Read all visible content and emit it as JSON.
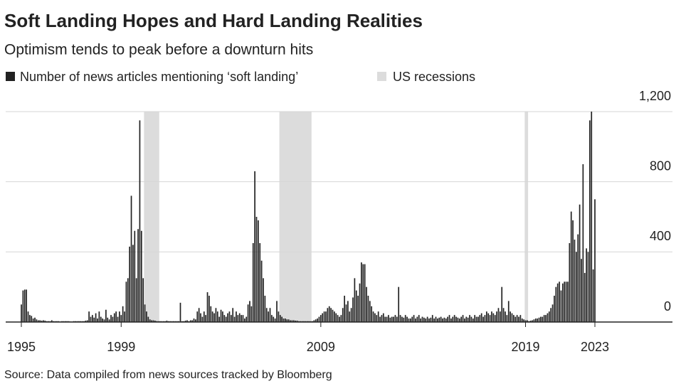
{
  "chart_data": {
    "type": "bar",
    "title": "Soft Landing Hopes and Hard Landing Realities",
    "subtitle": "Optimism tends to peak before a downturn hits",
    "source": "Source: Data compiled from news sources tracked by Bloomberg",
    "categories": [
      "1995",
      null,
      null,
      null,
      null,
      null,
      null,
      null,
      null,
      null,
      null,
      null,
      null,
      null,
      null,
      null,
      null,
      null,
      null,
      null,
      null,
      null,
      null,
      null,
      null,
      null,
      null,
      null,
      null,
      null,
      null,
      null,
      null,
      null,
      null,
      null,
      null,
      null,
      null,
      null,
      null,
      null,
      null,
      null,
      null,
      null,
      null,
      null,
      null,
      null,
      null,
      null,
      null,
      null,
      null,
      null,
      null,
      null,
      null,
      "1999",
      null,
      null,
      null,
      null,
      null,
      null,
      null,
      null,
      null,
      null,
      null,
      null,
      null,
      null,
      null,
      null,
      null,
      null,
      null,
      null,
      null,
      null,
      null,
      null,
      null,
      null,
      null,
      null,
      null,
      null,
      null,
      null,
      null,
      null,
      null,
      null,
      null,
      null,
      null,
      null,
      null,
      null,
      null,
      null,
      null,
      null,
      null,
      null,
      null,
      null,
      null,
      null,
      null,
      null,
      null,
      null,
      null,
      null,
      null,
      null,
      null,
      null,
      null,
      null,
      null,
      null,
      null,
      null,
      null,
      null,
      null,
      null,
      null,
      null,
      null,
      null,
      null,
      null,
      null,
      null,
      null,
      null,
      null,
      null,
      null,
      null,
      null,
      null,
      null,
      null,
      null,
      null,
      null,
      null,
      null,
      null,
      null,
      null,
      null,
      null,
      null,
      null,
      null,
      null,
      null,
      null,
      null,
      null,
      null,
      null,
      null,
      null,
      null,
      null,
      null,
      null,
      null,
      "2009",
      null,
      null,
      null,
      null,
      null,
      null,
      null,
      null,
      null,
      null,
      null,
      null,
      null,
      null,
      null,
      null,
      null,
      null,
      null,
      null,
      null,
      null,
      null,
      null,
      null,
      null,
      null,
      null,
      null,
      null,
      null,
      null,
      null,
      null,
      null,
      null,
      null,
      null,
      null,
      null,
      null,
      null,
      null,
      null,
      null,
      null,
      null,
      null,
      null,
      null,
      null,
      null,
      null,
      null,
      null,
      null,
      null,
      null,
      null,
      null,
      null,
      null,
      null,
      null,
      null,
      null,
      null,
      null,
      null,
      null,
      null,
      null,
      null,
      null,
      null,
      null,
      null,
      null,
      null,
      null,
      null,
      null,
      null,
      null,
      null,
      null,
      null,
      null,
      null,
      null,
      null,
      null,
      null,
      null,
      null,
      null,
      null,
      null,
      null,
      null,
      null,
      null,
      null,
      null,
      null,
      null,
      null,
      null,
      null,
      null,
      null,
      null,
      null,
      null,
      null,
      null,
      null,
      null,
      null,
      null,
      "2019",
      null,
      null,
      null,
      null,
      null,
      null,
      null,
      null,
      null,
      null,
      null,
      null,
      null,
      null,
      null,
      null,
      null,
      null,
      null,
      null,
      null,
      null,
      null,
      null,
      null,
      null,
      null,
      null,
      null,
      null,
      null,
      null,
      null,
      null,
      null,
      null,
      null,
      null,
      null,
      null,
      "2023"
    ],
    "series": [
      {
        "name": "Number of news articles mentioning ‘soft landing’",
        "color": "#222222",
        "values": [
          100,
          180,
          185,
          185,
          60,
          40,
          35,
          20,
          25,
          15,
          10,
          10,
          8,
          10,
          8,
          5,
          5,
          5,
          10,
          5,
          5,
          5,
          5,
          3,
          5,
          5,
          5,
          5,
          5,
          3,
          3,
          5,
          5,
          5,
          5,
          5,
          5,
          5,
          8,
          10,
          60,
          30,
          40,
          25,
          50,
          20,
          60,
          30,
          20,
          15,
          70,
          25,
          15,
          40,
          30,
          50,
          60,
          30,
          60,
          40,
          90,
          60,
          230,
          250,
          430,
          720,
          440,
          520,
          250,
          530,
          1150,
          520,
          250,
          100,
          60,
          30,
          15,
          10,
          10,
          8,
          5,
          5,
          5,
          5,
          5,
          5,
          8,
          5,
          5,
          5,
          5,
          5,
          5,
          5,
          110,
          5,
          5,
          8,
          10,
          5,
          10,
          10,
          20,
          15,
          60,
          80,
          50,
          30,
          60,
          40,
          170,
          150,
          90,
          60,
          50,
          80,
          60,
          30,
          70,
          60,
          40,
          30,
          50,
          60,
          40,
          80,
          30,
          60,
          40,
          50,
          40,
          40,
          20,
          30,
          100,
          120,
          90,
          450,
          860,
          600,
          580,
          450,
          350,
          250,
          150,
          80,
          60,
          80,
          40,
          30,
          20,
          120,
          60,
          40,
          30,
          20,
          20,
          15,
          15,
          10,
          10,
          10,
          8,
          8,
          5,
          5,
          5,
          5,
          5,
          5,
          5,
          5,
          5,
          10,
          15,
          20,
          30,
          40,
          50,
          60,
          60,
          80,
          90,
          80,
          70,
          60,
          50,
          40,
          30,
          40,
          80,
          150,
          100,
          120,
          60,
          80,
          140,
          250,
          180,
          150,
          220,
          340,
          330,
          330,
          200,
          150,
          120,
          90,
          60,
          50,
          40,
          60,
          30,
          40,
          50,
          30,
          30,
          40,
          25,
          30,
          30,
          40,
          30,
          200,
          40,
          30,
          25,
          40,
          30,
          20,
          20,
          30,
          40,
          20,
          30,
          40,
          20,
          30,
          25,
          20,
          30,
          20,
          25,
          40,
          20,
          30,
          20,
          25,
          30,
          20,
          25,
          20,
          30,
          40,
          20,
          30,
          40,
          30,
          25,
          20,
          30,
          40,
          20,
          30,
          25,
          40,
          30,
          20,
          40,
          30,
          30,
          40,
          50,
          30,
          40,
          60,
          50,
          40,
          60,
          50,
          40,
          60,
          80,
          60,
          200,
          80,
          60,
          40,
          120,
          60,
          50,
          40,
          30,
          40,
          30,
          40,
          20,
          15,
          10,
          10,
          5,
          8,
          10,
          15,
          20,
          20,
          25,
          30,
          30,
          40,
          40,
          50,
          60,
          80,
          100,
          150,
          200,
          220,
          230,
          180,
          220,
          230,
          230,
          230,
          450,
          630,
          580,
          470,
          400,
          500,
          670,
          360,
          900,
          280,
          420,
          400,
          1150,
          1200,
          300,
          700
        ]
      }
    ],
    "recessions": {
      "name": "US recessions",
      "color": "#dcdcdc",
      "ranges": [
        [
          73,
          81
        ],
        [
          153,
          171
        ],
        [
          298,
          299
        ]
      ]
    },
    "ylim": [
      0,
      1200
    ],
    "yticks": [
      0,
      400,
      800,
      {
        "value": 1200,
        "label": "1,200"
      }
    ],
    "grid": true
  }
}
